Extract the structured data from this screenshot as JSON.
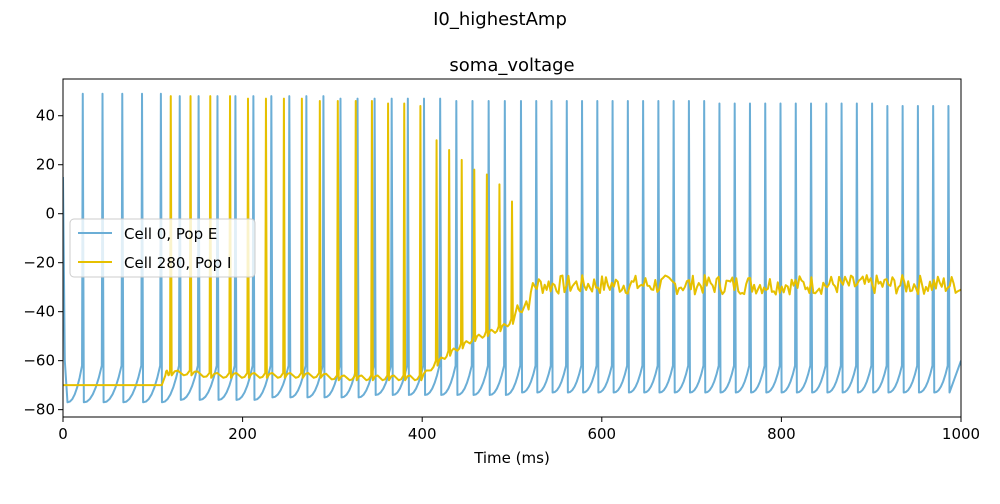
{
  "figure": {
    "suptitle": "I0_highestAmp"
  },
  "chart_data": {
    "type": "line",
    "title": "soma_voltage",
    "xlabel": "Time (ms)",
    "ylabel": "",
    "xlim": [
      0,
      1000
    ],
    "ylim": [
      -83,
      55
    ],
    "xticks": [
      0,
      200,
      400,
      600,
      800,
      1000
    ],
    "yticks": [
      -80,
      -60,
      -40,
      -20,
      0,
      20,
      40
    ],
    "grid": false,
    "legend_position": "center-left",
    "series": [
      {
        "name": "Cell 0, Pop E",
        "color": "#6baed6",
        "model": "tonic-spiking",
        "rest_mv": -77,
        "spike_times_ms": [
          22,
          44,
          66,
          88,
          109,
          130,
          151,
          172,
          192,
          212,
          232,
          252,
          271,
          290,
          309,
          328,
          347,
          366,
          384,
          402,
          420,
          438,
          456,
          474,
          492,
          510,
          527,
          544,
          561,
          578,
          595,
          612,
          629,
          646,
          663,
          680,
          697,
          714,
          731,
          748,
          765,
          782,
          799,
          816,
          833,
          850,
          867,
          884,
          901,
          918,
          935,
          952,
          969,
          986
        ],
        "spike_peaks_mv": [
          49,
          49,
          49,
          49,
          49,
          48,
          48,
          48,
          48,
          48,
          48,
          48,
          48,
          48,
          47,
          47,
          47,
          47,
          47,
          47,
          47,
          46,
          46,
          46,
          46,
          46,
          46,
          46,
          46,
          46,
          46,
          46,
          46,
          46,
          46,
          46,
          46,
          46,
          45,
          45,
          45,
          45,
          45,
          45,
          45,
          45,
          45,
          45,
          45,
          44,
          44,
          44,
          44,
          44
        ],
        "trough_mv": [
          -77,
          -77,
          -77,
          -77,
          -77,
          -76,
          -76,
          -76,
          -76,
          -76,
          -75,
          -75,
          -75,
          -75,
          -75,
          -75,
          -74,
          -74,
          -74,
          -74,
          -74,
          -74,
          -74,
          -74,
          -74,
          -73,
          -73,
          -73,
          -73,
          -73,
          -73,
          -73,
          -73,
          -73,
          -73,
          -73,
          -73,
          -73,
          -73,
          -73,
          -73,
          -73,
          -73,
          -73,
          -73,
          -73,
          -73,
          -73,
          -73,
          -73,
          -73,
          -73,
          -73,
          -73
        ]
      },
      {
        "name": "Cell 280, Pop I",
        "color": "#e6c000",
        "model": "depolarization-block",
        "rest_mv": -70,
        "onset_ms": 110,
        "spike_times_ms": [
          120,
          142,
          164,
          186,
          206,
          226,
          246,
          266,
          286,
          306,
          326,
          344,
          362,
          380,
          398,
          416,
          430,
          444,
          458,
          472,
          486,
          500
        ],
        "spike_peaks_mv": [
          48,
          48,
          48,
          48,
          47,
          47,
          47,
          47,
          46,
          46,
          46,
          46,
          45,
          45,
          44,
          30,
          26,
          22,
          18,
          16,
          12,
          5
        ],
        "trough_mv": [
          -66,
          -66,
          -67,
          -67,
          -67,
          -67,
          -67,
          -67,
          -67,
          -68,
          -68,
          -68,
          -68,
          -68,
          -68,
          -62,
          -58,
          -55,
          -52,
          -50,
          -48,
          -45
        ],
        "plateau_mv": -29,
        "plateau_noise_mv": 4
      }
    ]
  }
}
